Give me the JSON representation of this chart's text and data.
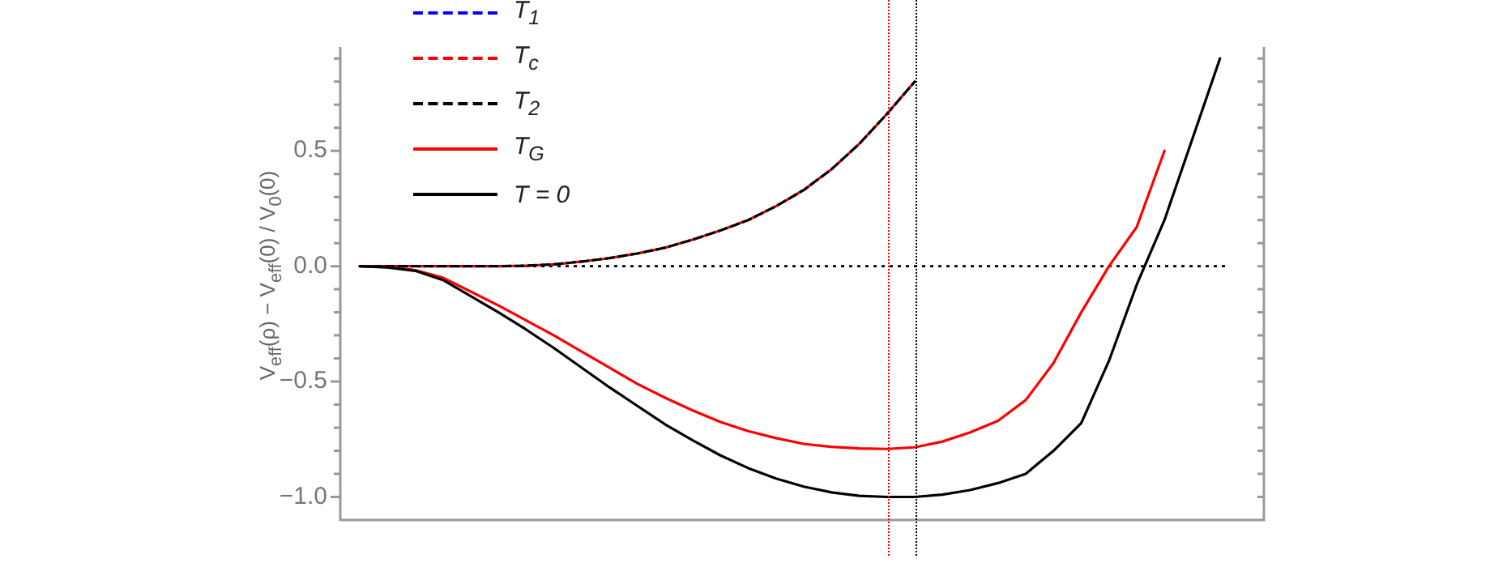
{
  "chart_data": {
    "type": "line",
    "ylabel": "V$_{eff}$(ρ) − V$_{eff}$(0) / V$_{0}$(0)",
    "categories": [
      null,
      null,
      null,
      null,
      null,
      null,
      null,
      null,
      null,
      null,
      null,
      null,
      null,
      null,
      null,
      null,
      null,
      null,
      null,
      null,
      null,
      null,
      null,
      null,
      null,
      null,
      null,
      null,
      null,
      null,
      null,
      null,
      null
    ],
    "series": [
      {
        "name": "T$_{1}$",
        "color": "#0000ff",
        "line_style": "dashed",
        "values": [
          null,
          null,
          null,
          null,
          null,
          null,
          null,
          null,
          null,
          null,
          null,
          null,
          null,
          null,
          null,
          null,
          null,
          null,
          null,
          null,
          null,
          null,
          null,
          null,
          null,
          null,
          null,
          null,
          null,
          null,
          null,
          null,
          null
        ]
      },
      {
        "name": "T$_{c}$",
        "color": "#ff0000",
        "line_style": "dashed",
        "values": [
          0,
          0,
          0,
          0,
          0,
          0,
          0.002,
          0.008,
          0.02,
          0.035,
          0.055,
          0.08,
          0.115,
          0.155,
          0.2,
          0.26,
          0.33,
          0.42,
          0.53,
          0.66,
          0.8,
          null,
          null,
          null,
          null,
          null,
          null,
          null,
          null,
          null,
          null,
          null,
          null
        ]
      },
      {
        "name": "T$_{2}$",
        "color": "#000000",
        "line_style": "dashed",
        "values": [
          0,
          0,
          0,
          0,
          0,
          0,
          0.002,
          0.008,
          0.02,
          0.035,
          0.055,
          0.08,
          0.115,
          0.155,
          0.2,
          0.26,
          0.33,
          0.42,
          0.53,
          0.66,
          0.8,
          null,
          null,
          null,
          null,
          null,
          null,
          null,
          null,
          null,
          null,
          null,
          null
        ]
      },
      {
        "name": "T$_{G}$",
        "color": "#ff0000",
        "line_style": "solid",
        "values": [
          0,
          -0.004,
          -0.017,
          -0.05,
          -0.11,
          -0.17,
          -0.235,
          -0.3,
          -0.37,
          -0.44,
          -0.51,
          -0.57,
          -0.625,
          -0.675,
          -0.715,
          -0.745,
          -0.77,
          -0.783,
          -0.79,
          -0.792,
          -0.785,
          -0.76,
          -0.72,
          -0.67,
          -0.58,
          -0.42,
          -0.2,
          0.0,
          0.17,
          0.5,
          null,
          null,
          null
        ]
      },
      {
        "name": "T = 0",
        "color": "#000000",
        "line_style": "solid",
        "values": [
          0,
          -0.005,
          -0.02,
          -0.06,
          -0.13,
          -0.2,
          -0.275,
          -0.355,
          -0.44,
          -0.525,
          -0.605,
          -0.685,
          -0.755,
          -0.82,
          -0.875,
          -0.92,
          -0.955,
          -0.98,
          -0.995,
          -1.0,
          -1.0,
          -0.99,
          -0.97,
          -0.94,
          -0.9,
          -0.8,
          -0.68,
          -0.41,
          -0.08,
          0.2,
          0.55,
          0.9,
          null
        ]
      }
    ],
    "ylim": [
      -1.1,
      0.95
    ],
    "yticks": [
      {
        "value": -1.0,
        "label": "−1.0"
      },
      {
        "value": -0.9,
        "label": null
      },
      {
        "value": -0.8,
        "label": null
      },
      {
        "value": -0.7,
        "label": null
      },
      {
        "value": -0.6,
        "label": null
      },
      {
        "value": -0.5,
        "label": "−0.5"
      },
      {
        "value": -0.4,
        "label": null
      },
      {
        "value": -0.3,
        "label": null
      },
      {
        "value": -0.2,
        "label": null
      },
      {
        "value": -0.1,
        "label": null
      },
      {
        "value": 0,
        "label": "0.0"
      },
      {
        "value": 0.1,
        "label": null
      },
      {
        "value": 0.2,
        "label": null
      },
      {
        "value": 0.3,
        "label": null
      },
      {
        "value": 0.4,
        "label": null
      },
      {
        "value": 0.5,
        "label": "0.5"
      },
      {
        "value": 0.6,
        "label": null
      },
      {
        "value": 0.7,
        "label": null
      },
      {
        "value": 0.8,
        "label": null
      },
      {
        "value": 0.9,
        "label": null
      }
    ],
    "tick_labels": "y",
    "grid": false,
    "legend": "top left",
    "marker": "none",
    "ref_lines": [
      {
        "axis": "y",
        "value": 0,
        "color": "#000000",
        "line_style": "dotted"
      }
    ]
  }
}
